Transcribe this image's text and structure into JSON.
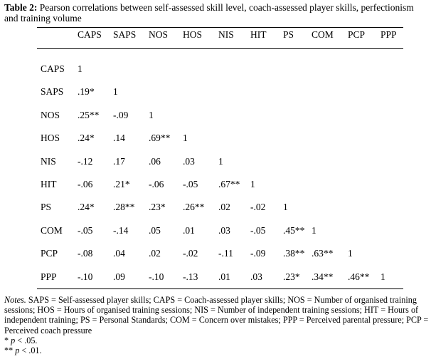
{
  "table": {
    "caption_label": "Table 2:",
    "caption_text": " Pearson correlations between self-assessed skill level, coach-assessed player skills, perfectionism and training volume",
    "columns": [
      "CAPS",
      "SAPS",
      "NOS",
      "HOS",
      "NIS",
      "HIT",
      "PS",
      "COM",
      "PCP",
      "PPP"
    ],
    "rows": [
      {
        "label": "CAPS",
        "cells": [
          "1"
        ]
      },
      {
        "label": "SAPS",
        "cells": [
          ".19*",
          "1"
        ]
      },
      {
        "label": "NOS",
        "cells": [
          ".25**",
          "-.09",
          "1"
        ]
      },
      {
        "label": "HOS",
        "cells": [
          ".24*",
          ".14",
          ".69**",
          "1"
        ]
      },
      {
        "label": "NIS",
        "cells": [
          "-.12",
          ".17",
          ".06",
          ".03",
          "1"
        ]
      },
      {
        "label": "HIT",
        "cells": [
          "-.06",
          ".21*",
          "-.06",
          "-.05",
          ".67**",
          "1"
        ]
      },
      {
        "label": "PS",
        "cells": [
          ".24*",
          ".28**",
          ".23*",
          ".26**",
          ".02",
          "-.02",
          "1"
        ]
      },
      {
        "label": "COM",
        "cells": [
          "-.05",
          "-.14",
          ".05",
          ".01",
          ".03",
          "-.05",
          ".45**",
          "1"
        ]
      },
      {
        "label": "PCP",
        "cells": [
          "-.08",
          ".04",
          ".02",
          "-.02",
          "-.11",
          "-.09",
          ".38**",
          ".63**",
          "1"
        ]
      },
      {
        "label": "PPP",
        "cells": [
          "-.10",
          ".09",
          "-.10",
          "-.13",
          ".01",
          ".03",
          ".23*",
          ".34**",
          ".46**",
          "1"
        ]
      }
    ]
  },
  "notes": {
    "label": "Notes.",
    "text": " SAPS = Self-assessed player skills; CAPS = Coach-assessed player skills; NOS = Number of organised training sessions; HOS = Hours of organised training sessions; NIS = Number of independent training sessions; HIT = Hours of independent training; PS = Personal Standards; COM = Concern over mistakes; PPP = Perceived parental pressure; PCP = Perceived coach pressure",
    "sig1_prefix": "* ",
    "sig1_p": "p",
    "sig1_rest": " < .05.",
    "sig2_prefix": "** ",
    "sig2_p": "p",
    "sig2_rest": " < .01."
  }
}
